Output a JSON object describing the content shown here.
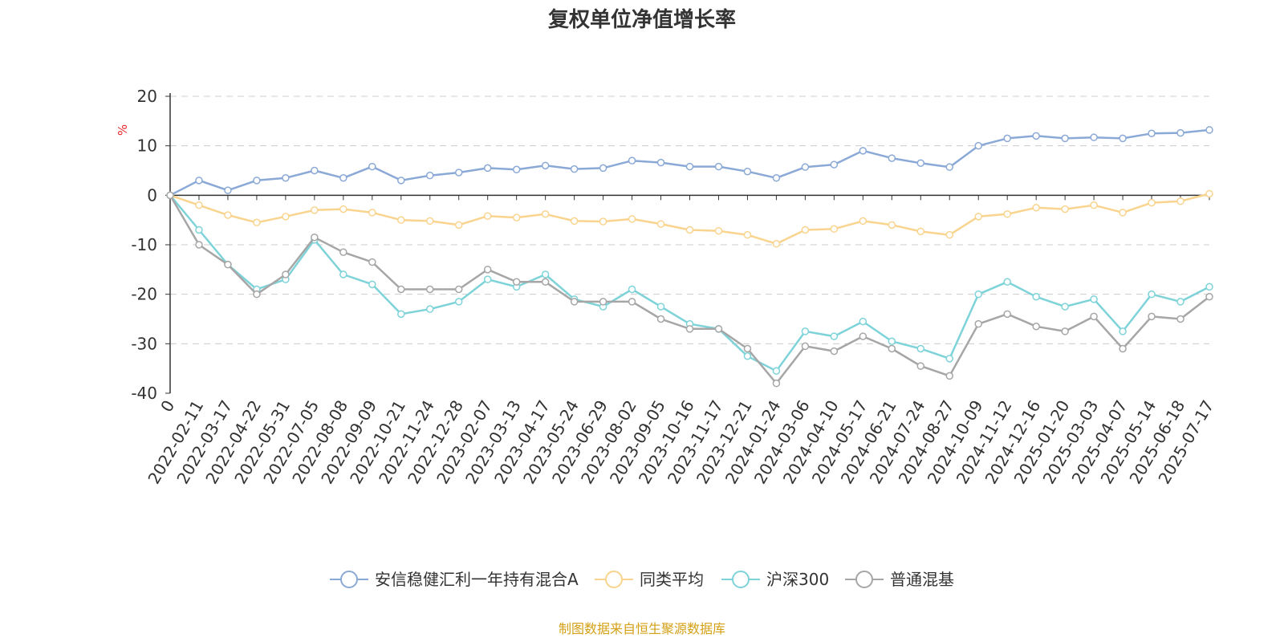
{
  "chart_data": {
    "type": "line",
    "title": "复权单位净值增长率",
    "yunit": "%",
    "ylim": [
      -40,
      20
    ],
    "yticks": [
      20,
      10,
      0,
      -10,
      -20,
      -30,
      -40
    ],
    "grid": true,
    "legend_position": "bottom",
    "x_labels": [
      "0",
      "2022-02-11",
      "2022-03-17",
      "2022-04-22",
      "2022-05-31",
      "2022-07-05",
      "2022-08-08",
      "2022-09-09",
      "2022-10-21",
      "2022-11-24",
      "2022-12-28",
      "2023-02-07",
      "2023-03-13",
      "2023-04-17",
      "2023-05-24",
      "2023-06-29",
      "2023-08-02",
      "2023-09-05",
      "2023-10-16",
      "2023-11-17",
      "2023-12-21",
      "2024-01-24",
      "2024-03-06",
      "2024-04-10",
      "2024-05-17",
      "2024-06-21",
      "2024-07-24",
      "2024-08-27",
      "2024-10-09",
      "2024-11-12",
      "2024-12-16",
      "2025-01-20",
      "2025-03-03",
      "2025-04-07",
      "2025-05-14",
      "2025-06-18",
      "2025-07-17"
    ],
    "series": [
      {
        "name": "安信稳健汇利一年持有混合A",
        "color": "#8ba9d6",
        "values": [
          0,
          3,
          1,
          3,
          3.5,
          5,
          3.5,
          5.8,
          3,
          4,
          4.6,
          5.5,
          5.2,
          6,
          5.3,
          5.5,
          7,
          6.6,
          5.8,
          5.8,
          4.8,
          3.5,
          5.7,
          6.2,
          9,
          7.5,
          6.5,
          5.7,
          10,
          11.5,
          12,
          11.5,
          11.7,
          11.5,
          12.5,
          12.6,
          13.2
        ]
      },
      {
        "name": "同类平均",
        "color": "#f9d48f",
        "values": [
          0,
          -2,
          -4,
          -5.5,
          -4.3,
          -3,
          -2.8,
          -3.5,
          -5,
          -5.2,
          -6,
          -4.2,
          -4.5,
          -3.8,
          -5.2,
          -5.3,
          -4.8,
          -5.8,
          -7,
          -7.2,
          -8,
          -9.8,
          -7,
          -6.8,
          -5.2,
          -6,
          -7.3,
          -8,
          -4.3,
          -3.8,
          -2.5,
          -2.8,
          -2,
          -3.5,
          -1.5,
          -1.2,
          0.3
        ]
      },
      {
        "name": "沪深300",
        "color": "#7ed3d9",
        "values": [
          0,
          -7,
          -14,
          -19,
          -17,
          -9,
          -16,
          -18,
          -24,
          -23,
          -21.5,
          -17,
          -18.5,
          -16,
          -21,
          -22.5,
          -19,
          -22.5,
          -26,
          -27,
          -32.5,
          -35.5,
          -27.5,
          -28.5,
          -25.5,
          -29.5,
          -31,
          -33,
          -20,
          -17.5,
          -20.5,
          -22.5,
          -21,
          -27.5,
          -20,
          -21.5,
          -18.5
        ]
      },
      {
        "name": "普通混基",
        "color": "#a6a6a6",
        "values": [
          0,
          -10,
          -14,
          -20,
          -16,
          -8.5,
          -11.5,
          -13.5,
          -19,
          -19,
          -19,
          -15,
          -17.5,
          -17.5,
          -21.5,
          -21.5,
          -21.5,
          -25,
          -27,
          -27,
          -31,
          -38,
          -30.5,
          -31.5,
          -28.5,
          -31,
          -34.5,
          -36.5,
          -26,
          -24,
          -26.5,
          -27.5,
          -24.5,
          -31,
          -24.5,
          -25,
          -20.5
        ]
      }
    ]
  },
  "source_note": "制图数据来自恒生聚源数据库",
  "colors": {
    "source": "#d4a017",
    "unit": "#e8252a",
    "axis": "#333333",
    "grid": "#cccccc"
  }
}
